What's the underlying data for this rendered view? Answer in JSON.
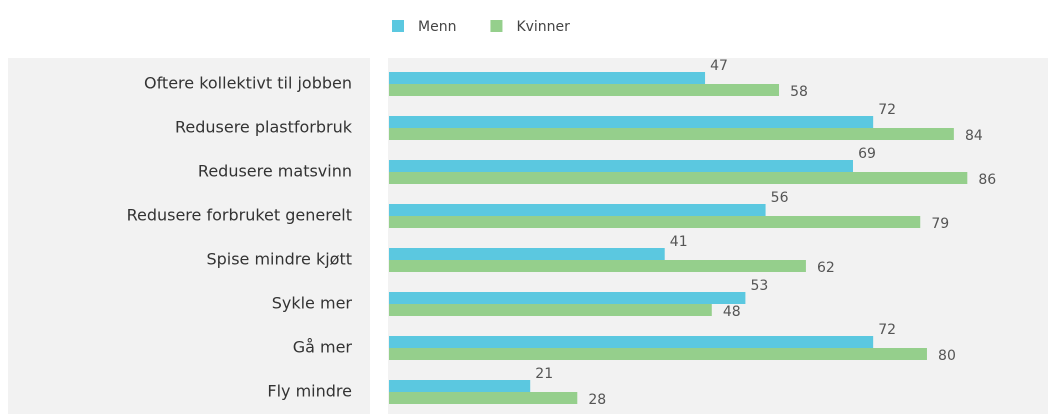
{
  "chart_data": {
    "type": "hbar",
    "categories": [
      "Oftere kollektivt til jobben",
      "Redusere plastforbruk",
      "Redusere matsvinn",
      "Redusere forbruket generelt",
      "Spise mindre kjøtt",
      "Sykle mer",
      "Gå mer",
      "Fly mindre"
    ],
    "series": [
      {
        "name": "Menn",
        "color": "#5bc8e0",
        "values": [
          47,
          72,
          69,
          56,
          41,
          53,
          72,
          21
        ]
      },
      {
        "name": "Kvinner",
        "color": "#95cf8c",
        "values": [
          58,
          84,
          86,
          79,
          62,
          48,
          80,
          28
        ]
      }
    ],
    "xlim": [
      0,
      98
    ],
    "legend": "top"
  }
}
